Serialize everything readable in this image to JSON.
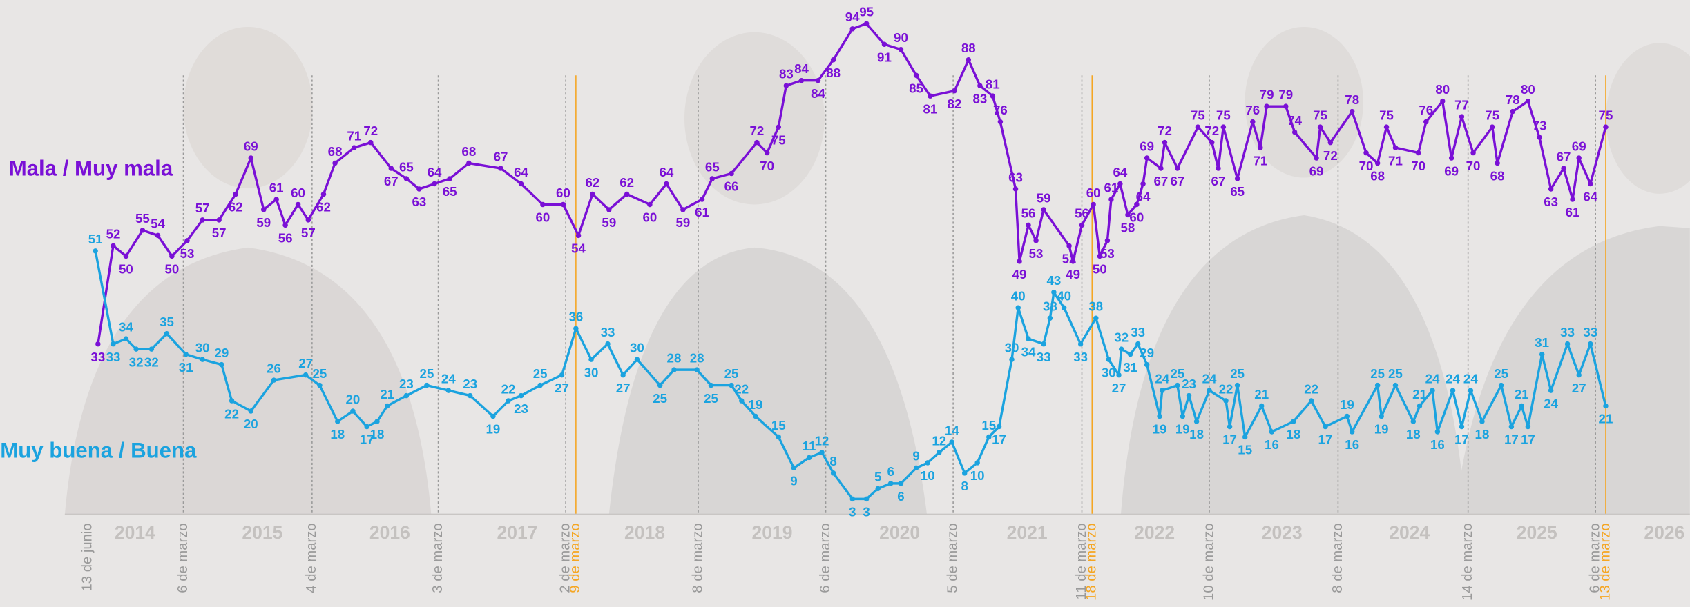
{
  "chart_data": {
    "type": "line",
    "xlim": [
      2013.45,
      2026.2
    ],
    "ylim": [
      0,
      100
    ],
    "xticks": [
      2014,
      2015,
      2016,
      2017,
      2018,
      2019,
      2020,
      2021,
      2022,
      2023,
      2024,
      2025,
      2026
    ],
    "events": [
      {
        "x": 2013.63,
        "label": "13 de junio",
        "color": "#9a9a9a"
      },
      {
        "x": 2014.38,
        "label": "6 de marzo",
        "color": "#9a9a9a"
      },
      {
        "x": 2015.39,
        "label": "4 de marzo",
        "color": "#9a9a9a"
      },
      {
        "x": 2016.38,
        "label": "3 de marzo",
        "color": "#9a9a9a"
      },
      {
        "x": 2017.38,
        "label": "2 de marzo",
        "color": "#9a9a9a"
      },
      {
        "x": 2017.46,
        "label": "9 de marzo",
        "color": "#f5a623"
      },
      {
        "x": 2018.42,
        "label": "8 de marzo",
        "color": "#9a9a9a"
      },
      {
        "x": 2019.42,
        "label": "6 de marzo",
        "color": "#9a9a9a"
      },
      {
        "x": 2020.42,
        "label": "5 de marzo",
        "color": "#9a9a9a"
      },
      {
        "x": 2021.43,
        "label": "11 de marzo",
        "color": "#9a9a9a"
      },
      {
        "x": 2021.51,
        "label": "18 de marzo",
        "color": "#f5a623"
      },
      {
        "x": 2022.43,
        "label": "10 de marzo",
        "color": "#9a9a9a"
      },
      {
        "x": 2023.44,
        "label": "8 de marzo",
        "color": "#9a9a9a"
      },
      {
        "x": 2024.46,
        "label": "14 de marzo",
        "color": "#9a9a9a"
      },
      {
        "x": 2025.46,
        "label": "6 de marzo",
        "color": "#9a9a9a"
      },
      {
        "x": 2025.54,
        "label": "13 de marzo",
        "color": "#f5a623"
      }
    ],
    "series": [
      {
        "name": "Mala / Muy mala",
        "color": "#7a10d6",
        "x": [
          2013.71,
          2013.83,
          2013.93,
          2014.06,
          2014.18,
          2014.29,
          2014.41,
          2014.53,
          2014.66,
          2014.79,
          2014.91,
          2015.01,
          2015.11,
          2015.18,
          2015.28,
          2015.36,
          2015.48,
          2015.57,
          2015.72,
          2015.85,
          2016.01,
          2016.13,
          2016.23,
          2016.35,
          2016.47,
          2016.62,
          2016.87,
          2017.03,
          2017.2,
          2017.36,
          2017.48,
          2017.59,
          2017.72,
          2017.86,
          2018.04,
          2018.17,
          2018.3,
          2018.45,
          2018.53,
          2018.68,
          2018.88,
          2018.96,
          2019.05,
          2019.11,
          2019.23,
          2019.36,
          2019.48,
          2019.63,
          2019.74,
          2019.88,
          2020.01,
          2020.13,
          2020.24,
          2020.43,
          2020.54,
          2020.63,
          2020.73,
          2020.79,
          2020.91,
          2020.94,
          2021.01,
          2021.07,
          2021.13,
          2021.33,
          2021.36,
          2021.43,
          2021.52,
          2021.57,
          2021.63,
          2021.66,
          2021.73,
          2021.79,
          2021.86,
          2021.91,
          2021.94,
          2022.05,
          2022.08,
          2022.18,
          2022.34,
          2022.45,
          2022.5,
          2022.54,
          2022.65,
          2022.77,
          2022.83,
          2022.88,
          2023.03,
          2023.1,
          2023.27,
          2023.3,
          2023.38,
          2023.55,
          2023.66,
          2023.75,
          2023.82,
          2023.89,
          2024.07,
          2024.13,
          2024.26,
          2024.33,
          2024.41,
          2024.5,
          2024.65,
          2024.69,
          2024.81,
          2024.93,
          2025.02,
          2025.11,
          2025.21,
          2025.28,
          2025.33,
          2025.42,
          2025.54
        ],
        "values": [
          33,
          52,
          50,
          55,
          54,
          50,
          53,
          57,
          57,
          62,
          69,
          59,
          61,
          56,
          60,
          57,
          62,
          68,
          71,
          72,
          67,
          65,
          63,
          64,
          65,
          68,
          67,
          64,
          60,
          60,
          54,
          62,
          59,
          62,
          60,
          64,
          59,
          61,
          65,
          66,
          72,
          70,
          75,
          83,
          84,
          84,
          88,
          94,
          95,
          91,
          90,
          85,
          81,
          82,
          88,
          83,
          81,
          76,
          63,
          49,
          56,
          53,
          59,
          52,
          49,
          56,
          60,
          50,
          53,
          61,
          64,
          58,
          60,
          64,
          69,
          67,
          72,
          67,
          75,
          72,
          67,
          75,
          65,
          76,
          71,
          79,
          79,
          74,
          69,
          75,
          72,
          78,
          70,
          68,
          75,
          71,
          70,
          76,
          80,
          69,
          77,
          70,
          75,
          68,
          78,
          80,
          73,
          63,
          67,
          61,
          69,
          64,
          75
        ]
      },
      {
        "name": "Muy buena / Buena",
        "color": "#1ba3df",
        "x": [
          2013.69,
          2013.83,
          2013.93,
          2014.01,
          2014.13,
          2014.25,
          2014.4,
          2014.53,
          2014.68,
          2014.76,
          2014.91,
          2015.09,
          2015.34,
          2015.45,
          2015.59,
          2015.71,
          2015.82,
          2015.9,
          2015.98,
          2016.13,
          2016.29,
          2016.46,
          2016.63,
          2016.81,
          2016.93,
          2017.03,
          2017.18,
          2017.35,
          2017.46,
          2017.58,
          2017.71,
          2017.83,
          2017.94,
          2018.12,
          2018.23,
          2018.41,
          2018.52,
          2018.68,
          2018.76,
          2018.87,
          2019.05,
          2019.17,
          2019.29,
          2019.39,
          2019.48,
          2019.63,
          2019.74,
          2019.83,
          2019.93,
          2020.01,
          2020.13,
          2020.22,
          2020.31,
          2020.41,
          2020.51,
          2020.61,
          2020.7,
          2020.78,
          2020.88,
          2020.93,
          2021.01,
          2021.13,
          2021.18,
          2021.21,
          2021.29,
          2021.42,
          2021.54,
          2021.64,
          2021.72,
          2021.74,
          2021.81,
          2021.87,
          2021.94,
          2022.04,
          2022.06,
          2022.18,
          2022.22,
          2022.27,
          2022.33,
          2022.43,
          2022.56,
          2022.59,
          2022.65,
          2022.71,
          2022.84,
          2022.92,
          2023.09,
          2023.23,
          2023.34,
          2023.51,
          2023.55,
          2023.75,
          2023.78,
          2023.89,
          2024.03,
          2024.08,
          2024.18,
          2024.22,
          2024.34,
          2024.41,
          2024.48,
          2024.57,
          2024.72,
          2024.8,
          2024.88,
          2024.93,
          2025.04,
          2025.11,
          2025.24,
          2025.33,
          2025.42,
          2025.54
        ],
        "values": [
          51,
          33,
          34,
          32,
          32,
          35,
          31,
          30,
          29,
          22,
          20,
          26,
          27,
          25,
          18,
          20,
          17,
          18,
          21,
          23,
          25,
          24,
          23,
          19,
          22,
          23,
          25,
          27,
          36,
          30,
          33,
          27,
          30,
          25,
          28,
          28,
          25,
          25,
          22,
          19,
          15,
          9,
          11,
          12,
          8,
          3,
          3,
          5,
          6,
          6,
          9,
          10,
          12,
          14,
          8,
          10,
          15,
          17,
          30,
          40,
          34,
          33,
          38,
          43,
          40,
          33,
          38,
          30,
          27,
          32,
          31,
          33,
          29,
          19,
          24,
          25,
          19,
          23,
          18,
          24,
          22,
          17,
          25,
          15,
          21,
          16,
          18,
          22,
          17,
          19,
          16,
          25,
          19,
          25,
          18,
          21,
          24,
          16,
          24,
          17,
          24,
          18,
          25,
          17,
          21,
          17,
          31,
          24,
          33,
          27,
          33,
          21
        ]
      }
    ]
  }
}
